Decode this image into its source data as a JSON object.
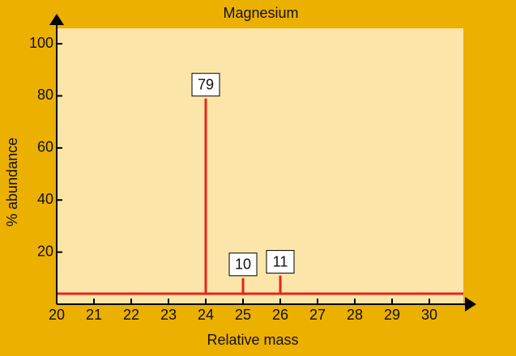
{
  "chart_data": {
    "type": "stem",
    "title": "Magnesium",
    "x_label": "Relative mass",
    "y_label": "% abundance",
    "x": [
      24,
      25,
      26
    ],
    "values": [
      79,
      10,
      11
    ],
    "color": "#e8231b",
    "xlim": [
      20,
      31
    ],
    "xticks": [
      20,
      21,
      22,
      23,
      24,
      25,
      26,
      27,
      28,
      29,
      30
    ],
    "ylim": [
      0,
      105
    ],
    "yticks": [
      20,
      40,
      60,
      80,
      100
    ]
  }
}
